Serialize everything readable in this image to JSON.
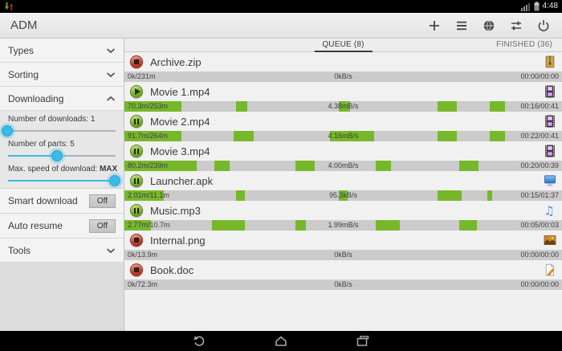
{
  "status_bar": {
    "time": "4:48",
    "icons": [
      "adm-notification-icon",
      "signal-icon",
      "battery-icon"
    ]
  },
  "action_bar": {
    "title": "ADM",
    "action_icons": [
      "plus-icon",
      "menu-icon",
      "globe-icon",
      "tune-icon",
      "power-icon"
    ]
  },
  "sidebar": {
    "sections": [
      {
        "label": "Types",
        "state": "collapsed"
      },
      {
        "label": "Sorting",
        "state": "collapsed"
      },
      {
        "label": "Downloading",
        "state": "expanded"
      }
    ],
    "sliders": [
      {
        "label": "Number of downloads:",
        "value": "1",
        "pct": 0,
        "value_bold": false
      },
      {
        "label": "Number of parts:",
        "value": "5",
        "pct": 46,
        "value_bold": false
      },
      {
        "label": "Max. speed of download:",
        "value": "MAX",
        "pct": 100,
        "value_bold": true
      }
    ],
    "toggles": [
      {
        "label": "Smart download",
        "value": "Off"
      },
      {
        "label": "Auto resume",
        "value": "Off"
      }
    ],
    "tools": {
      "label": "Tools",
      "state": "collapsed"
    }
  },
  "tabs": [
    {
      "label": "QUEUE (8)",
      "selected": true
    },
    {
      "label": "FINISHED (36)",
      "selected": false
    }
  ],
  "downloads": [
    {
      "name": "Archive.zip",
      "control": "stop",
      "file_icon": "zip",
      "size": "0k/231m",
      "speed": "0kB/s",
      "time": "00:00/00:00",
      "segments": []
    },
    {
      "name": "Movie 1.mp4",
      "control": "play",
      "file_icon": "video",
      "size": "70.3m/253m",
      "speed": "4.38mB/s",
      "time": "00:16/00:41",
      "segments": [
        [
          0,
          13
        ],
        [
          25.5,
          28
        ],
        [
          49,
          51.5
        ],
        [
          71.5,
          76
        ],
        [
          83.5,
          87
        ]
      ]
    },
    {
      "name": "Movie 2.mp4",
      "control": "pause",
      "file_icon": "video",
      "size": "91.7m/264m",
      "speed": "4.16mB/s",
      "time": "00:22/00:41",
      "segments": [
        [
          0,
          13
        ],
        [
          25,
          29.5
        ],
        [
          47,
          57
        ],
        [
          71.5,
          76
        ],
        [
          83.5,
          87
        ]
      ]
    },
    {
      "name": "Movie 3.mp4",
      "control": "pause",
      "file_icon": "video",
      "size": "80.2m/239m",
      "speed": "4.00mB/s",
      "time": "00:20/00:39",
      "segments": [
        [
          0,
          16.5
        ],
        [
          20.5,
          24
        ],
        [
          39,
          43.5
        ],
        [
          57.5,
          61
        ],
        [
          76.5,
          81
        ]
      ]
    },
    {
      "name": "Launcher.apk",
      "control": "pause",
      "file_icon": "apk",
      "size": "2.01m/11.1m",
      "speed": "95.3kB/s",
      "time": "00:15/01:37",
      "segments": [
        [
          0,
          9
        ],
        [
          25.5,
          27.5
        ],
        [
          49,
          51
        ],
        [
          71.5,
          77
        ],
        [
          83,
          84
        ]
      ]
    },
    {
      "name": "Music.mp3",
      "control": "pause",
      "file_icon": "audio",
      "size": "2.77m/10.7m",
      "speed": "1.99mB/s",
      "time": "00:05/00:03",
      "segments": [
        [
          0,
          6
        ],
        [
          20,
          27.5
        ],
        [
          39,
          41.5
        ],
        [
          57.5,
          63
        ],
        [
          76.5,
          80.5
        ]
      ]
    },
    {
      "name": "Internal.png",
      "control": "stop",
      "file_icon": "image",
      "size": "0k/13.9m",
      "speed": "0kB/s",
      "time": "00:00/00:00",
      "segments": []
    },
    {
      "name": "Book.doc",
      "control": "stop",
      "file_icon": "doc",
      "size": "0k/72.3m",
      "speed": "0kB/s",
      "time": "00:00/00:00",
      "segments": []
    }
  ],
  "nav_bar": {
    "icons": [
      "back-icon",
      "home-icon",
      "recents-icon"
    ]
  },
  "colors": {
    "progress_green": "#76b829",
    "progress_track": "#cbcbcb",
    "slider_blue": "#3db9e5",
    "stop_red": "#c2392b",
    "play_green": "#7fb335"
  }
}
